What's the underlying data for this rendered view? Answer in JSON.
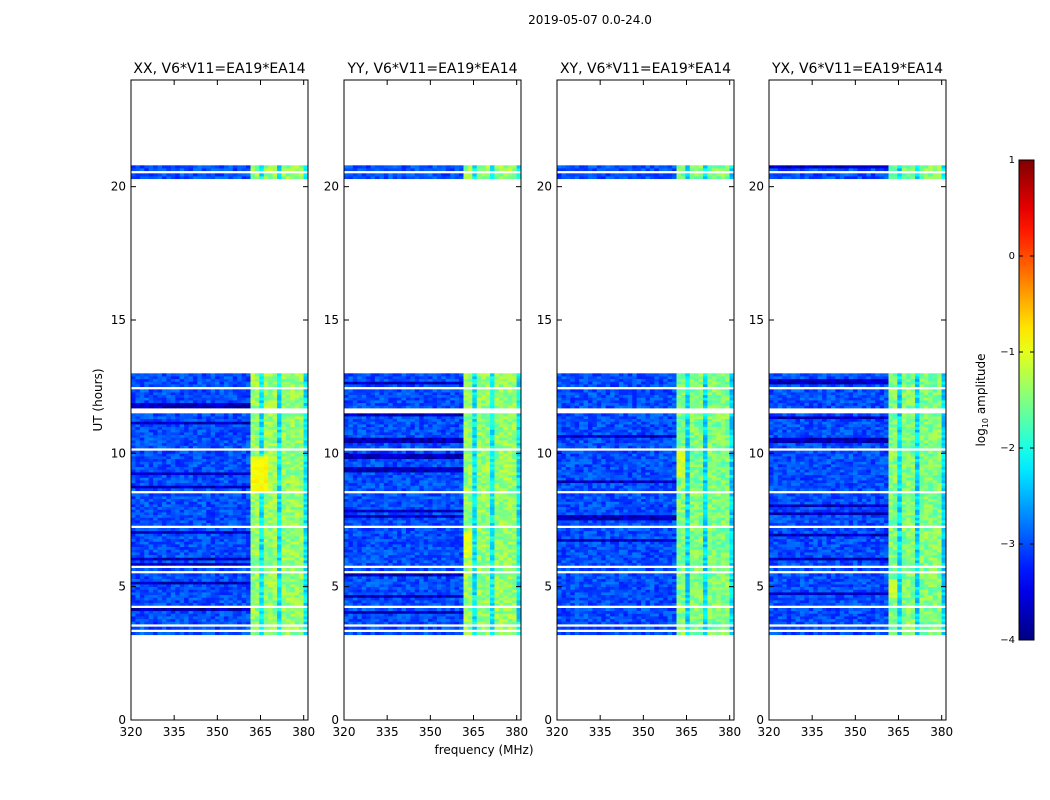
{
  "figure": {
    "suptitle": "2019-05-07 0.0-24.0",
    "xlabel": "frequency (MHz)",
    "ylabel": "UT (hours)",
    "colorbar_label_prefix": "log",
    "colorbar_label_sub": "10",
    "colorbar_label_suffix": " amplitude",
    "colorbar_ticks": [
      "1",
      "0",
      "−1",
      "−2",
      "−3",
      "−4"
    ],
    "colormap": "jet"
  },
  "chart_data": [
    {
      "type": "heatmap",
      "title": "XX, V6*V11=EA19*EA14",
      "xlabel": "frequency (MHz)",
      "ylabel": "UT (hours)",
      "xlim": [
        320,
        381.5
      ],
      "ylim": [
        0,
        24
      ],
      "xticks": [
        320,
        335,
        350,
        365,
        380
      ],
      "yticks": [
        0,
        5,
        10,
        15,
        20
      ],
      "clim": [
        -4,
        1
      ],
      "data_time_ranges_hours": [
        [
          3.2,
          12.95
        ],
        [
          20.3,
          20.75
        ]
      ],
      "background_level": -3.0,
      "band_center_mhz": [
        361,
        381
      ],
      "hot_columns_mhz": [
        [
          361,
          365
        ],
        [
          366.5,
          370.5
        ],
        [
          372,
          375
        ],
        [
          376,
          380
        ]
      ],
      "hot_level": -1.4,
      "peak_region": {
        "mhz": [
          360.5,
          368
        ],
        "hours": [
          8.5,
          9.8
        ],
        "level": -0.9
      }
    },
    {
      "type": "heatmap",
      "title": "YY, V6*V11=EA19*EA14",
      "xlabel": "frequency (MHz)",
      "ylabel": "UT (hours)",
      "xlim": [
        320,
        381.5
      ],
      "ylim": [
        0,
        24
      ],
      "xticks": [
        320,
        335,
        350,
        365,
        380
      ],
      "yticks": [
        0,
        5,
        10,
        15,
        20
      ],
      "clim": [
        -4,
        1
      ],
      "data_time_ranges_hours": [
        [
          3.2,
          12.95
        ],
        [
          20.3,
          20.75
        ]
      ],
      "background_level": -3.0,
      "band_center_mhz": [
        361,
        381
      ],
      "hot_columns_mhz": [
        [
          361,
          365
        ],
        [
          366.5,
          370.5
        ],
        [
          372,
          375
        ],
        [
          376,
          380
        ]
      ],
      "hot_level": -1.4,
      "peak_region": {
        "mhz": [
          361,
          365
        ],
        "hours": [
          6.0,
          7.0
        ],
        "level": -1.0
      }
    },
    {
      "type": "heatmap",
      "title": "XY, V6*V11=EA19*EA14",
      "xlabel": "frequency (MHz)",
      "ylabel": "UT (hours)",
      "xlim": [
        320,
        381.5
      ],
      "ylim": [
        0,
        24
      ],
      "xticks": [
        320,
        335,
        350,
        365,
        380
      ],
      "yticks": [
        0,
        5,
        10,
        15,
        20
      ],
      "clim": [
        -4,
        1
      ],
      "data_time_ranges_hours": [
        [
          3.2,
          12.95
        ],
        [
          20.3,
          20.75
        ]
      ],
      "background_level": -3.0,
      "band_center_mhz": [
        361,
        381
      ],
      "hot_columns_mhz": [
        [
          361,
          365
        ],
        [
          366.5,
          370.5
        ],
        [
          372,
          375
        ],
        [
          376,
          380
        ]
      ],
      "hot_level": -1.5,
      "peak_region": {
        "mhz": [
          361,
          365
        ],
        "hours": [
          9.0,
          10.0
        ],
        "level": -1.1
      }
    },
    {
      "type": "heatmap",
      "title": "YX, V6*V11=EA19*EA14",
      "xlabel": "frequency (MHz)",
      "ylabel": "UT (hours)",
      "xlim": [
        320,
        381.5
      ],
      "ylim": [
        0,
        24
      ],
      "xticks": [
        320,
        335,
        350,
        365,
        380
      ],
      "yticks": [
        0,
        5,
        10,
        15,
        20
      ],
      "clim": [
        -4,
        1
      ],
      "data_time_ranges_hours": [
        [
          3.2,
          12.95
        ],
        [
          20.3,
          20.75
        ]
      ],
      "background_level": -3.0,
      "band_center_mhz": [
        361,
        381
      ],
      "hot_columns_mhz": [
        [
          361,
          365
        ],
        [
          366.5,
          370.5
        ],
        [
          372,
          375
        ],
        [
          376,
          380
        ]
      ],
      "hot_level": -1.5,
      "peak_region": {
        "mhz": [
          361,
          365
        ],
        "hours": [
          4.5,
          5.2
        ],
        "level": -1.1
      }
    }
  ]
}
